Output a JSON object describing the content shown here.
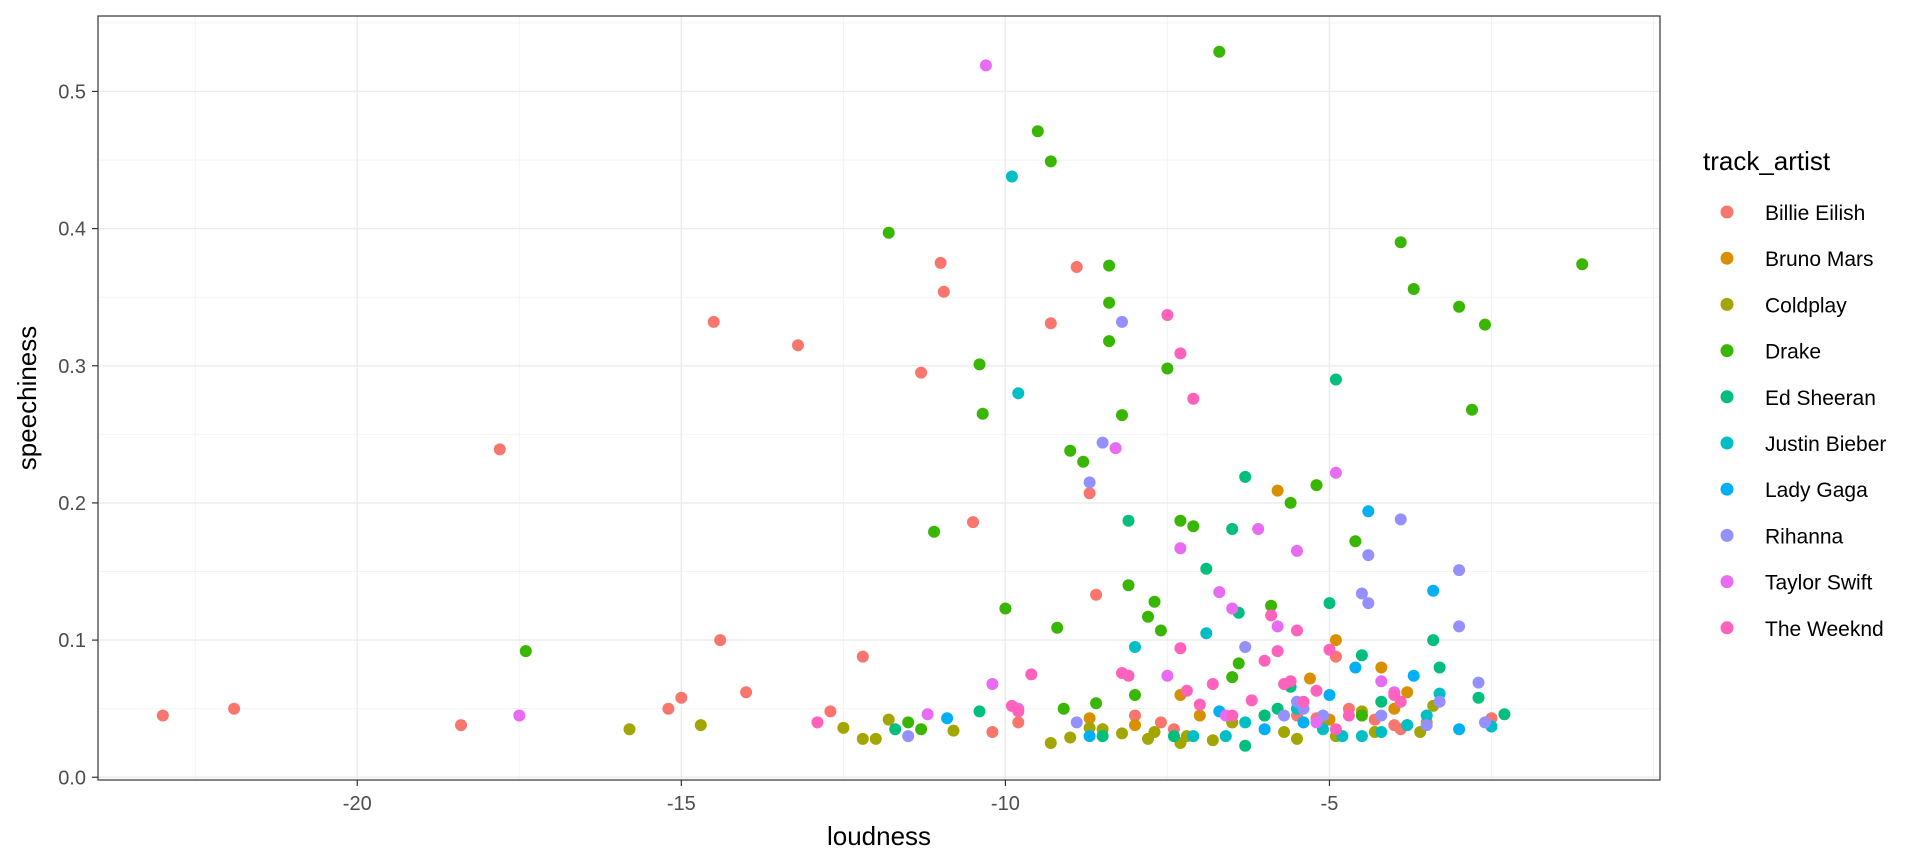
{
  "chart_data": {
    "type": "scatter",
    "xlabel": "loudness",
    "ylabel": "speechiness",
    "xlim": [
      -24.0,
      0.1
    ],
    "ylim": [
      -0.002,
      0.555
    ],
    "x_ticks": [
      -20,
      -15,
      -10,
      -5
    ],
    "x_tick_labels": [
      "-20",
      "-15",
      "-10",
      "-5"
    ],
    "y_ticks": [
      0.0,
      0.1,
      0.2,
      0.3,
      0.4,
      0.5
    ],
    "y_tick_labels": [
      "0.0",
      "0.1",
      "0.2",
      "0.3",
      "0.4",
      "0.5"
    ],
    "grid": true,
    "legend": {
      "title": "track_artist",
      "position": "right"
    },
    "series": [
      {
        "name": "Billie Eilish",
        "color": "#F8766D",
        "points": [
          [
            -23.0,
            0.045
          ],
          [
            -21.9,
            0.05
          ],
          [
            -18.4,
            0.038
          ],
          [
            -17.8,
            0.239
          ],
          [
            -15.2,
            0.05
          ],
          [
            -15.0,
            0.058
          ],
          [
            -14.5,
            0.332
          ],
          [
            -14.4,
            0.1
          ],
          [
            -14.0,
            0.062
          ],
          [
            -13.2,
            0.315
          ],
          [
            -12.7,
            0.048
          ],
          [
            -12.2,
            0.088
          ],
          [
            -11.3,
            0.295
          ],
          [
            -11.0,
            0.375
          ],
          [
            -10.95,
            0.354
          ],
          [
            -10.5,
            0.186
          ],
          [
            -10.2,
            0.033
          ],
          [
            -9.8,
            0.04
          ],
          [
            -9.3,
            0.331
          ],
          [
            -8.9,
            0.372
          ],
          [
            -8.7,
            0.207
          ],
          [
            -8.6,
            0.133
          ],
          [
            -8.0,
            0.045
          ],
          [
            -7.6,
            0.04
          ],
          [
            -7.4,
            0.035
          ],
          [
            -5.5,
            0.045
          ],
          [
            -5.2,
            0.043
          ],
          [
            -4.9,
            0.088
          ],
          [
            -4.7,
            0.05
          ],
          [
            -4.5,
            0.045
          ],
          [
            -4.3,
            0.042
          ],
          [
            -4.0,
            0.038
          ],
          [
            -3.9,
            0.035
          ],
          [
            -2.5,
            0.043
          ]
        ]
      },
      {
        "name": "Bruno Mars",
        "color": "#D89000",
        "points": [
          [
            -8.7,
            0.043
          ],
          [
            -8.0,
            0.038
          ],
          [
            -7.3,
            0.06
          ],
          [
            -7.0,
            0.045
          ],
          [
            -6.5,
            0.04
          ],
          [
            -5.8,
            0.209
          ],
          [
            -5.5,
            0.05
          ],
          [
            -5.3,
            0.072
          ],
          [
            -5.0,
            0.042
          ],
          [
            -4.9,
            0.1
          ],
          [
            -4.2,
            0.08
          ],
          [
            -4.0,
            0.05
          ],
          [
            -3.8,
            0.062
          ],
          [
            -3.5,
            0.04
          ]
        ]
      },
      {
        "name": "Coldplay",
        "color": "#A3A500",
        "points": [
          [
            -15.8,
            0.035
          ],
          [
            -14.7,
            0.038
          ],
          [
            -12.5,
            0.036
          ],
          [
            -12.2,
            0.028
          ],
          [
            -12.0,
            0.028
          ],
          [
            -11.8,
            0.042
          ],
          [
            -10.8,
            0.034
          ],
          [
            -9.3,
            0.025
          ],
          [
            -9.0,
            0.029
          ],
          [
            -8.7,
            0.036
          ],
          [
            -8.5,
            0.035
          ],
          [
            -8.2,
            0.032
          ],
          [
            -7.8,
            0.028
          ],
          [
            -7.7,
            0.033
          ],
          [
            -7.3,
            0.025
          ],
          [
            -7.2,
            0.03
          ],
          [
            -6.8,
            0.027
          ],
          [
            -6.5,
            0.04
          ],
          [
            -6.0,
            0.045
          ],
          [
            -5.7,
            0.033
          ],
          [
            -5.5,
            0.028
          ],
          [
            -5.1,
            0.04
          ],
          [
            -4.9,
            0.03
          ],
          [
            -4.5,
            0.048
          ],
          [
            -4.3,
            0.033
          ],
          [
            -3.8,
            0.038
          ],
          [
            -3.6,
            0.033
          ],
          [
            -3.4,
            0.052
          ]
        ]
      },
      {
        "name": "Drake",
        "color": "#39B600",
        "points": [
          [
            -17.4,
            0.092
          ],
          [
            -11.8,
            0.397
          ],
          [
            -11.5,
            0.04
          ],
          [
            -11.3,
            0.035
          ],
          [
            -11.1,
            0.179
          ],
          [
            -10.4,
            0.301
          ],
          [
            -10.35,
            0.265
          ],
          [
            -10.0,
            0.123
          ],
          [
            -9.5,
            0.471
          ],
          [
            -9.3,
            0.449
          ],
          [
            -9.2,
            0.109
          ],
          [
            -9.1,
            0.05
          ],
          [
            -9.0,
            0.238
          ],
          [
            -8.8,
            0.23
          ],
          [
            -8.6,
            0.054
          ],
          [
            -8.4,
            0.373
          ],
          [
            -8.4,
            0.346
          ],
          [
            -8.4,
            0.318
          ],
          [
            -8.2,
            0.264
          ],
          [
            -8.1,
            0.14
          ],
          [
            -8.0,
            0.06
          ],
          [
            -7.8,
            0.117
          ],
          [
            -7.7,
            0.128
          ],
          [
            -7.6,
            0.107
          ],
          [
            -7.5,
            0.298
          ],
          [
            -7.3,
            0.187
          ],
          [
            -7.1,
            0.183
          ],
          [
            -6.7,
            0.529
          ],
          [
            -6.5,
            0.073
          ],
          [
            -6.4,
            0.083
          ],
          [
            -5.9,
            0.125
          ],
          [
            -5.6,
            0.2
          ],
          [
            -5.2,
            0.213
          ],
          [
            -4.6,
            0.172
          ],
          [
            -4.5,
            0.045
          ],
          [
            -3.9,
            0.39
          ],
          [
            -3.7,
            0.356
          ],
          [
            -3.0,
            0.343
          ],
          [
            -2.8,
            0.268
          ],
          [
            -2.6,
            0.33
          ],
          [
            -1.1,
            0.374
          ]
        ]
      },
      {
        "name": "Ed Sheeran",
        "color": "#00BF7D",
        "points": [
          [
            -11.7,
            0.035
          ],
          [
            -10.4,
            0.048
          ],
          [
            -8.5,
            0.03
          ],
          [
            -8.1,
            0.187
          ],
          [
            -7.4,
            0.03
          ],
          [
            -6.9,
            0.152
          ],
          [
            -6.5,
            0.181
          ],
          [
            -6.4,
            0.12
          ],
          [
            -6.3,
            0.219
          ],
          [
            -6.0,
            0.045
          ],
          [
            -5.8,
            0.05
          ],
          [
            -5.6,
            0.066
          ],
          [
            -5.0,
            0.127
          ],
          [
            -4.9,
            0.29
          ],
          [
            -4.5,
            0.089
          ],
          [
            -4.2,
            0.055
          ],
          [
            -3.4,
            0.1
          ],
          [
            -3.3,
            0.08
          ],
          [
            -2.7,
            0.058
          ],
          [
            -2.3,
            0.046
          ],
          [
            -6.3,
            0.023
          ]
        ]
      },
      {
        "name": "Justin Bieber",
        "color": "#00BFC4",
        "points": [
          [
            -9.9,
            0.438
          ],
          [
            -9.8,
            0.28
          ],
          [
            -8.0,
            0.095
          ],
          [
            -7.1,
            0.03
          ],
          [
            -6.9,
            0.105
          ],
          [
            -6.6,
            0.03
          ],
          [
            -6.3,
            0.04
          ],
          [
            -5.5,
            0.05
          ],
          [
            -5.1,
            0.035
          ],
          [
            -4.8,
            0.03
          ],
          [
            -4.5,
            0.03
          ],
          [
            -4.2,
            0.033
          ],
          [
            -3.8,
            0.038
          ],
          [
            -3.5,
            0.045
          ],
          [
            -3.3,
            0.061
          ],
          [
            -2.5,
            0.037
          ]
        ]
      },
      {
        "name": "Lady Gaga",
        "color": "#00B0F6",
        "points": [
          [
            -10.9,
            0.043
          ],
          [
            -8.7,
            0.03
          ],
          [
            -6.7,
            0.048
          ],
          [
            -6.0,
            0.035
          ],
          [
            -5.4,
            0.04
          ],
          [
            -5.0,
            0.06
          ],
          [
            -4.6,
            0.08
          ],
          [
            -4.4,
            0.194
          ],
          [
            -3.7,
            0.074
          ],
          [
            -3.4,
            0.136
          ],
          [
            -3.0,
            0.035
          ]
        ]
      },
      {
        "name": "Rihanna",
        "color": "#9590FF",
        "points": [
          [
            -11.5,
            0.03
          ],
          [
            -8.9,
            0.04
          ],
          [
            -8.7,
            0.215
          ],
          [
            -8.5,
            0.244
          ],
          [
            -8.2,
            0.332
          ],
          [
            -6.3,
            0.095
          ],
          [
            -5.7,
            0.045
          ],
          [
            -5.5,
            0.055
          ],
          [
            -5.4,
            0.05
          ],
          [
            -4.5,
            0.134
          ],
          [
            -4.4,
            0.127
          ],
          [
            -4.4,
            0.162
          ],
          [
            -4.2,
            0.045
          ],
          [
            -3.9,
            0.188
          ],
          [
            -3.5,
            0.038
          ],
          [
            -3.3,
            0.055
          ],
          [
            -3.0,
            0.151
          ],
          [
            -3.0,
            0.11
          ],
          [
            -2.7,
            0.069
          ],
          [
            -2.6,
            0.04
          ],
          [
            -5.1,
            0.045
          ]
        ]
      },
      {
        "name": "Taylor Swift",
        "color": "#E76BF3",
        "points": [
          [
            -17.5,
            0.045
          ],
          [
            -11.2,
            0.046
          ],
          [
            -10.2,
            0.068
          ],
          [
            -10.3,
            0.519
          ],
          [
            -9.8,
            0.05
          ],
          [
            -8.3,
            0.24
          ],
          [
            -7.5,
            0.074
          ],
          [
            -7.3,
            0.167
          ],
          [
            -6.7,
            0.135
          ],
          [
            -6.5,
            0.123
          ],
          [
            -6.1,
            0.181
          ],
          [
            -5.8,
            0.11
          ],
          [
            -5.5,
            0.165
          ],
          [
            -4.9,
            0.222
          ],
          [
            -4.2,
            0.07
          ],
          [
            -4.0,
            0.062
          ],
          [
            -5.2,
            0.04
          ],
          [
            -6.6,
            0.045
          ]
        ]
      },
      {
        "name": "The Weeknd",
        "color": "#FF62BC",
        "points": [
          [
            -12.9,
            0.04
          ],
          [
            -9.9,
            0.052
          ],
          [
            -9.8,
            0.048
          ],
          [
            -9.6,
            0.075
          ],
          [
            -8.1,
            0.074
          ],
          [
            -8.2,
            0.076
          ],
          [
            -7.5,
            0.337
          ],
          [
            -7.3,
            0.309
          ],
          [
            -7.1,
            0.276
          ],
          [
            -7.3,
            0.094
          ],
          [
            -7.2,
            0.063
          ],
          [
            -7.0,
            0.053
          ],
          [
            -6.8,
            0.068
          ],
          [
            -6.5,
            0.045
          ],
          [
            -6.2,
            0.056
          ],
          [
            -6.0,
            0.085
          ],
          [
            -5.9,
            0.118
          ],
          [
            -5.8,
            0.092
          ],
          [
            -5.7,
            0.068
          ],
          [
            -5.6,
            0.07
          ],
          [
            -5.5,
            0.107
          ],
          [
            -5.4,
            0.055
          ],
          [
            -5.2,
            0.063
          ],
          [
            -5.0,
            0.093
          ],
          [
            -4.9,
            0.035
          ],
          [
            -4.7,
            0.045
          ],
          [
            -4.0,
            0.06
          ],
          [
            -3.9,
            0.055
          ]
        ]
      }
    ]
  }
}
